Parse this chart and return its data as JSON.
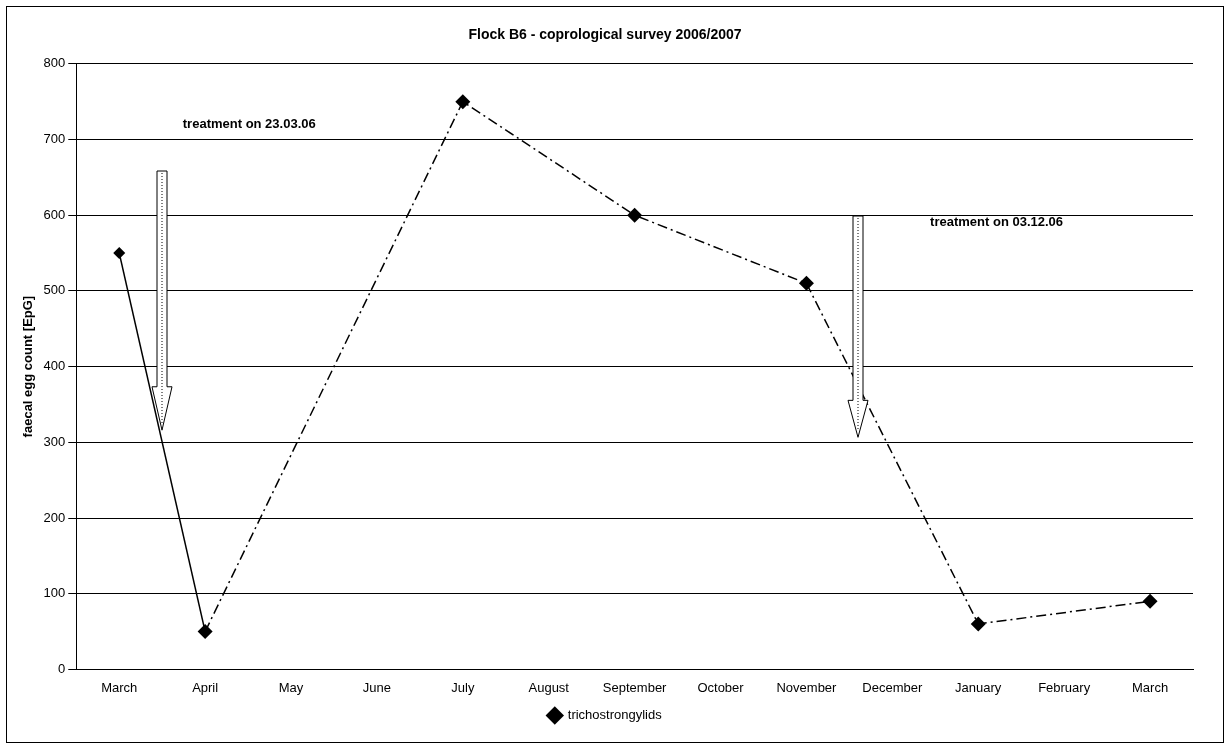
{
  "chart_data": {
    "type": "line",
    "title": "Flock B6 - coprological survey 2006/2007",
    "ylabel": "faecal egg count [EpG]",
    "categories": [
      "March",
      "April",
      "May",
      "June",
      "July",
      "August",
      "September",
      "October",
      "November",
      "December",
      "January",
      "February",
      "March"
    ],
    "series": [
      {
        "color": "#000000",
        "line_style": "solid",
        "values": [
          550,
          50,
          null,
          null,
          null,
          null,
          null,
          null,
          null,
          null,
          null,
          null,
          null
        ]
      },
      {
        "name": "trichostrongylids",
        "color": "#000000",
        "line_style": "dashdot",
        "values": [
          null,
          50,
          null,
          null,
          750,
          null,
          600,
          null,
          510,
          null,
          60,
          null,
          90
        ]
      }
    ],
    "ylim": [
      0,
      800
    ],
    "yticks": [
      0,
      100,
      200,
      300,
      400,
      500,
      600,
      700,
      800
    ],
    "grid": "y",
    "legend": "bottom",
    "marker": "diamond",
    "annotations": [
      "treatment on 23.03.06",
      "treatment on 03.12.06"
    ]
  }
}
